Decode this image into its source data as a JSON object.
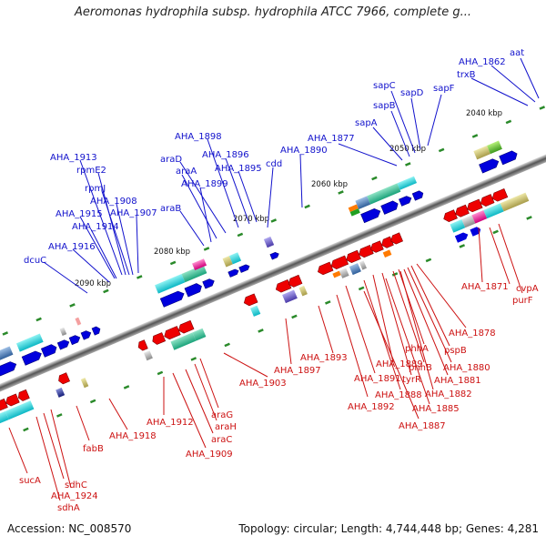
{
  "title": "Aeromonas hydrophila subsp. hydrophila ATCC 7966, complete g...",
  "footer": {
    "accession": "Accession: NC_008570",
    "summary": "Topology: circular; Length: 4,744,448 bp; Genes: 4,281"
  },
  "colors": {
    "top_label": "#1111cc",
    "bottom_label": "#cc1111",
    "forward": "#0000dd",
    "reverse": "#ee0000"
  },
  "kbp_ticks": [
    "2040 kbp",
    "2050 kbp",
    "2060 kbp",
    "2070 kbp",
    "2080 kbp",
    "2090 kbp"
  ],
  "top_labels": [
    "aat",
    "AHA_1862",
    "trxB",
    "sapF",
    "sapD",
    "sapC",
    "sapB",
    "sapA",
    "AHA_1877",
    "AHA_1890",
    "cdd",
    "AHA_1895",
    "AHA_1896",
    "AHA_1898",
    "araD",
    "araA",
    "AHA_1899",
    "araB",
    "AHA_1913",
    "rpmE2",
    "rpmJ",
    "AHA_1908",
    "AHA_1907",
    "AHA_1915",
    "AHA_1914",
    "AHA_1916",
    "dcuC"
  ],
  "bottom_labels": [
    "AHA_1871",
    "cvpA",
    "purF",
    "AHA_1878",
    "pspB",
    "phhA",
    "AHA_1880",
    "phhB",
    "AHA_1881",
    "AHA_1889",
    "tyrR",
    "AHA_1882",
    "AHA_1893",
    "AHA_1891",
    "AHA_1888",
    "AHA_1885",
    "AHA_1892",
    "AHA_1887",
    "AHA_1897",
    "AHA_1903",
    "araG",
    "araH",
    "araC",
    "AHA_1909",
    "AHA_1912",
    "AHA_1918",
    "fabB",
    "sucA",
    "AHA_1924",
    "sdhC",
    "sdhA"
  ]
}
